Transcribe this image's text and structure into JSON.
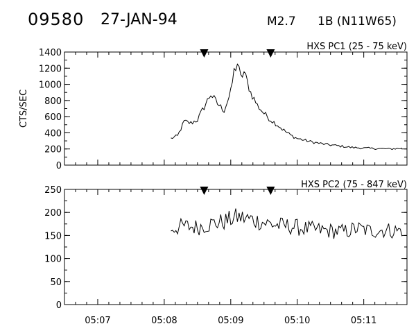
{
  "header": {
    "burst_number": "09580",
    "date": "27-JAN-94",
    "flare_class": "M2.7",
    "flare_importance": "1B (N11W65)"
  },
  "chart_data": [
    {
      "type": "line",
      "title": "HXS PC1 (25 - 75 keV)",
      "ylabel": "CTS/SEC",
      "ylim": [
        0,
        1400
      ],
      "yticks": [
        0,
        200,
        400,
        600,
        800,
        1000,
        1200,
        1400
      ],
      "xlim_minutes": [
        6.5,
        11.65
      ],
      "markers_time_labels": [
        "05:08.6",
        "05:09.6"
      ],
      "series": [
        {
          "x_times": [
            "05:08:06",
            "05:08:12",
            "05:08:18",
            "05:08:24",
            "05:08:30",
            "05:08:36",
            "05:08:42",
            "05:08:48",
            "05:08:54",
            "05:09:00",
            "05:09:03",
            "05:09:06",
            "05:09:09",
            "05:09:12",
            "05:09:18",
            "05:09:24",
            "05:09:30",
            "05:09:36",
            "05:09:42",
            "05:09:48",
            "05:09:54",
            "05:10:00",
            "05:10:12",
            "05:10:24",
            "05:10:36",
            "05:10:48",
            "05:11:00",
            "05:11:12",
            "05:11:24",
            "05:11:36"
          ],
          "values": [
            330,
            360,
            540,
            520,
            560,
            720,
            880,
            760,
            680,
            900,
            1160,
            1260,
            1080,
            1150,
            900,
            740,
            640,
            560,
            500,
            430,
            370,
            330,
            290,
            260,
            240,
            220,
            210,
            205,
            200,
            210
          ]
        }
      ]
    },
    {
      "type": "line",
      "title": "HXS PC2 (75 - 847 keV)",
      "ylabel": "",
      "ylim": [
        0,
        250
      ],
      "yticks": [
        0,
        50,
        100,
        150,
        200,
        250
      ],
      "xlim_minutes": [
        6.5,
        11.65
      ],
      "markers_time_labels": [
        "05:08.6",
        "05:09.6"
      ],
      "xtick_labels": [
        "05:07",
        "05:08",
        "05:09",
        "05:10",
        "05:11"
      ],
      "series": [
        {
          "x_times": [
            "05:08:06",
            "05:08:18",
            "05:08:30",
            "05:08:42",
            "05:08:54",
            "05:09:06",
            "05:09:18",
            "05:09:30",
            "05:09:42",
            "05:09:54",
            "05:10:06",
            "05:10:18",
            "05:10:30",
            "05:10:42",
            "05:10:54",
            "05:11:06",
            "05:11:18",
            "05:11:30",
            "05:11:36"
          ],
          "values": [
            165,
            170,
            168,
            175,
            180,
            190,
            185,
            178,
            172,
            170,
            165,
            162,
            160,
            158,
            165,
            160,
            162,
            160,
            163
          ]
        }
      ]
    }
  ]
}
